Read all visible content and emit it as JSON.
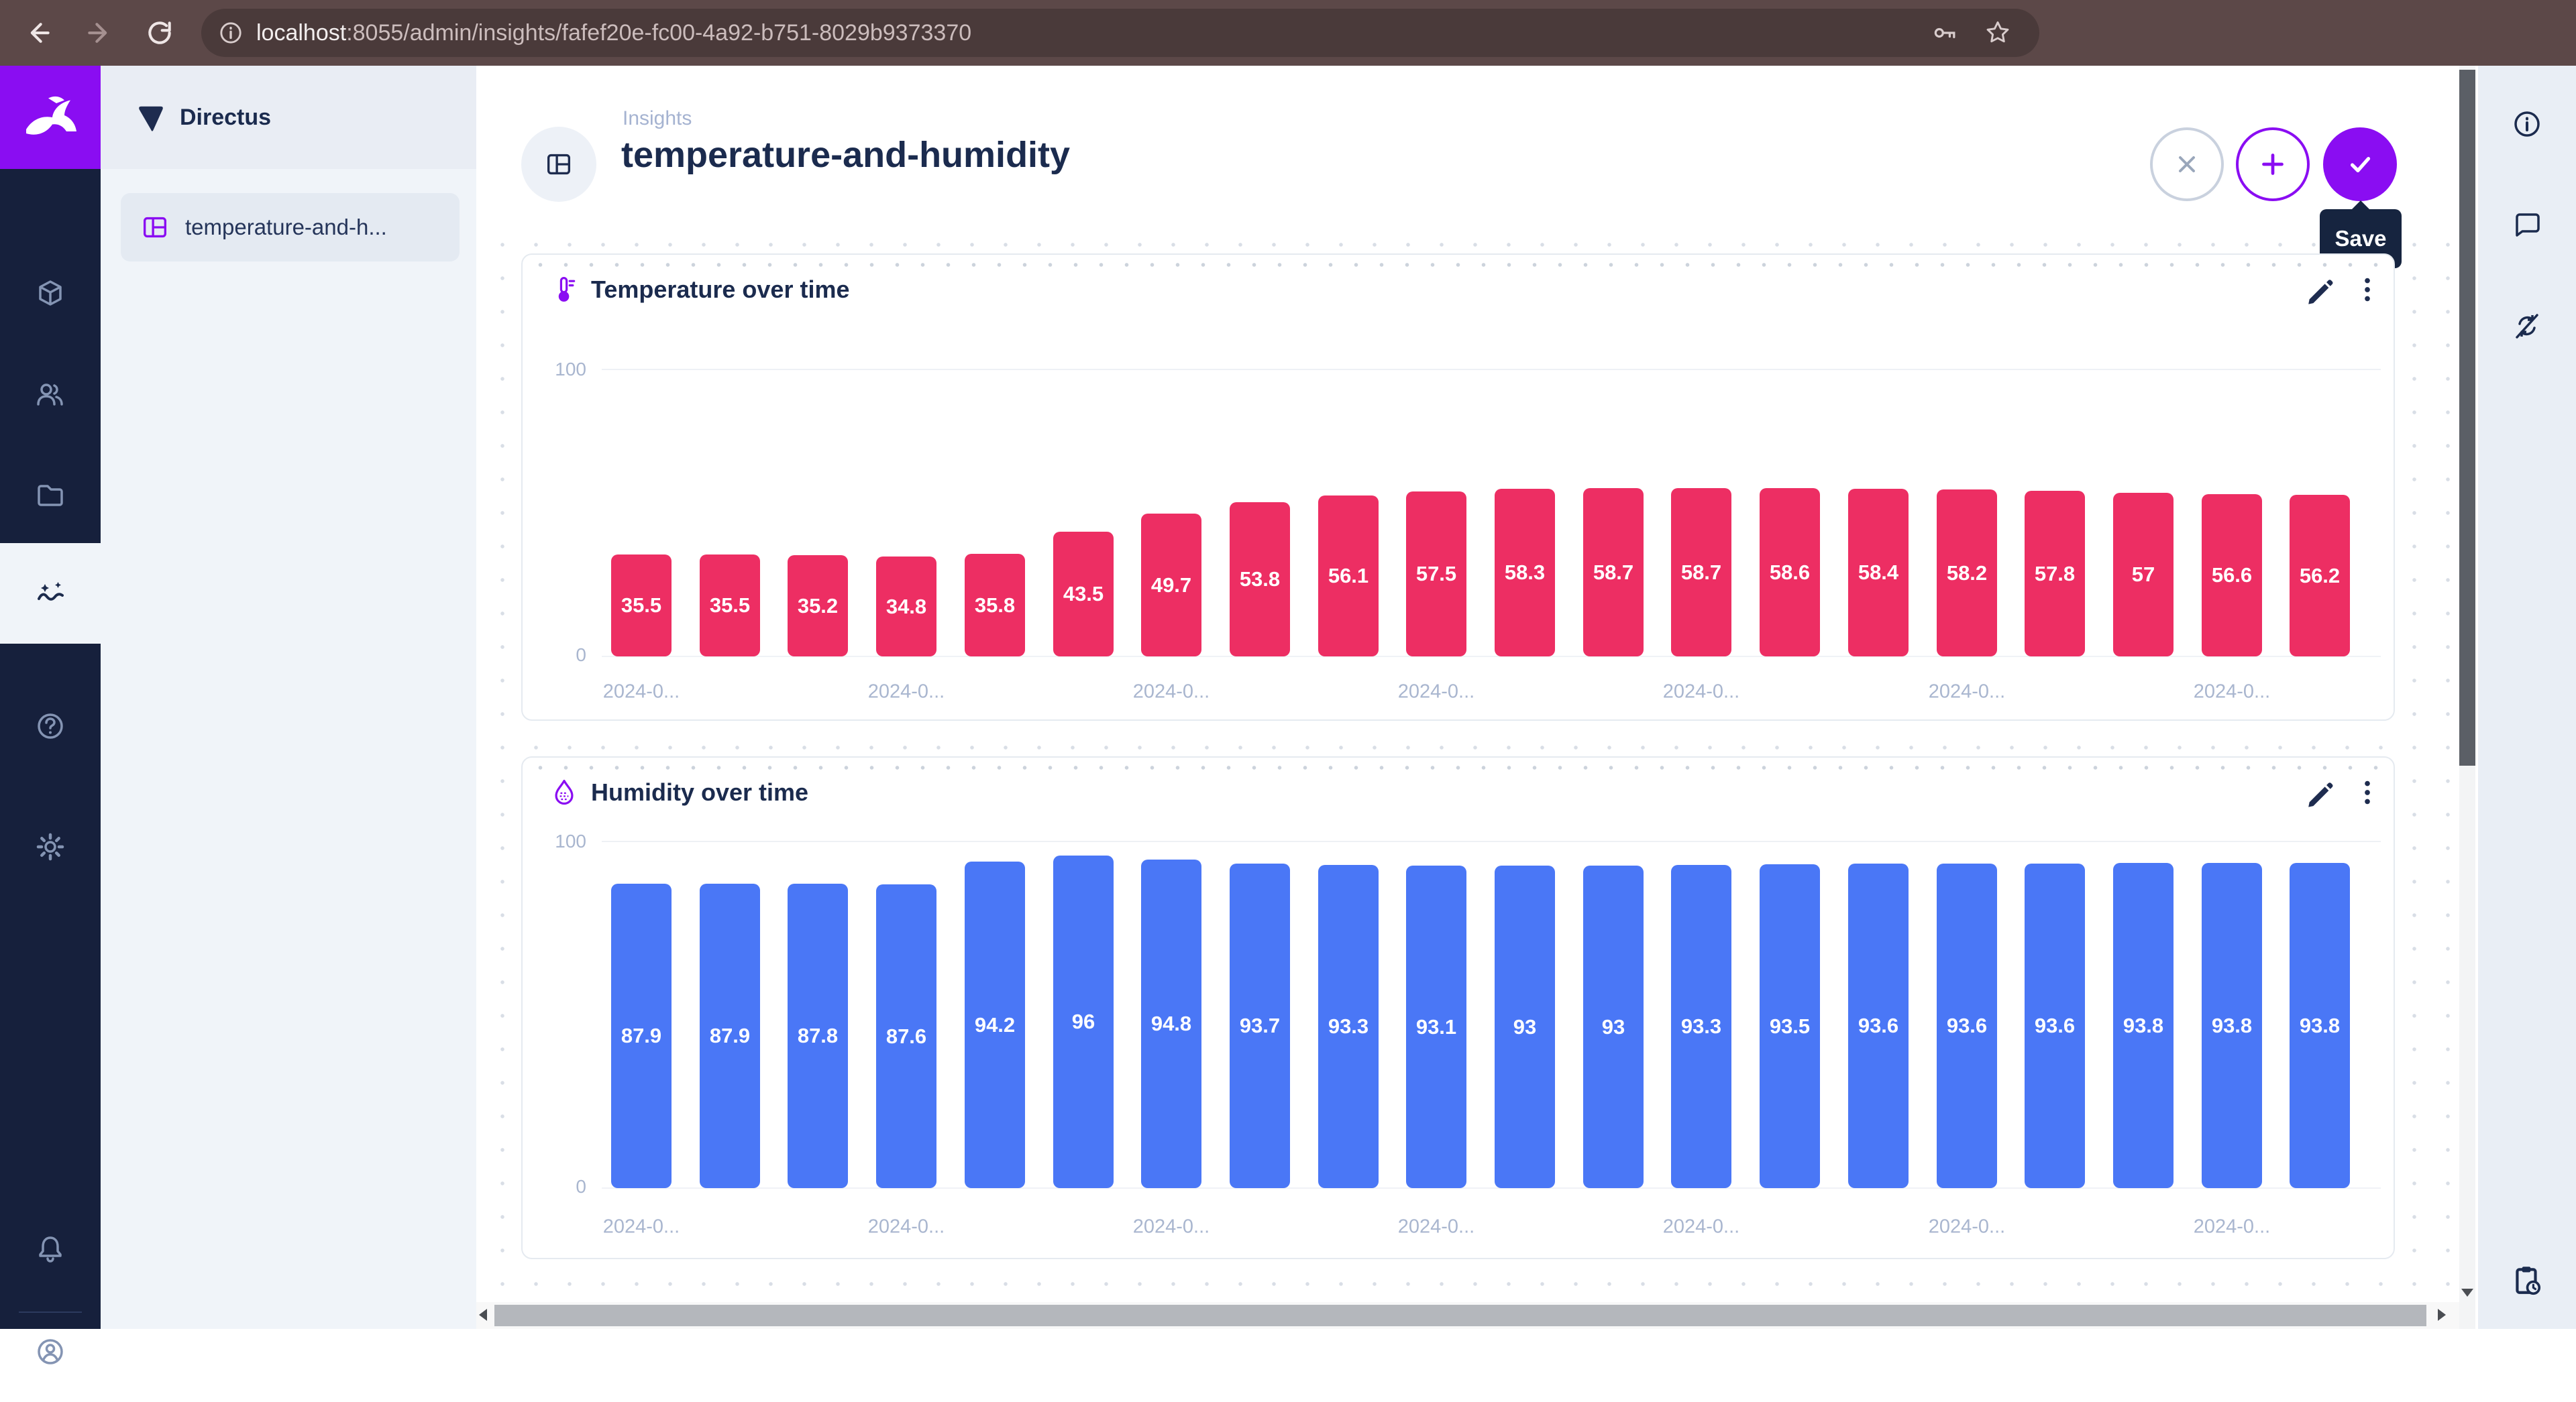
{
  "browser": {
    "url_host": "localhost",
    "url_rest": ":8055/admin/insights/fafef20e-fc00-4a92-b751-8029b9373370"
  },
  "module_bar": {
    "icons": [
      "directus-logo",
      "box",
      "users",
      "folder",
      "insights",
      "help",
      "settings",
      "notifications",
      "user-avatar"
    ]
  },
  "sidebar": {
    "project_name": "Directus",
    "item_label": "temperature-and-h..."
  },
  "header": {
    "breadcrumb": "Insights",
    "title": "temperature-and-humidity",
    "save_tooltip": "Save"
  },
  "right_sidebar": {
    "icons": [
      "info",
      "comments",
      "auto-refresh-off",
      "clipboard-clock"
    ]
  },
  "colors": {
    "accent_purple": "#8a0df2",
    "temperature_bar": "#ed2e63",
    "humidity_bar": "#4a77f6",
    "navy": "#1b2b4e"
  },
  "chart_data": [
    {
      "type": "bar",
      "title": "Temperature over time",
      "values": [
        35.5,
        35.5,
        35.2,
        34.8,
        35.8,
        43.5,
        49.7,
        53.8,
        56.1,
        57.5,
        58.3,
        58.7,
        58.7,
        58.6,
        58.4,
        58.2,
        57.8,
        57,
        56.6,
        56.2
      ],
      "ylim": [
        0,
        100
      ],
      "x_tick_text": "2024-0...",
      "x_label_indices": [
        0,
        3,
        6,
        9,
        12,
        15,
        18
      ],
      "color": "#ed2e63",
      "grid": "top-gridline-and-baseline",
      "legend": "none",
      "value_labels": "inside-bars-white"
    },
    {
      "type": "bar",
      "title": "Humidity over time",
      "values": [
        87.9,
        87.9,
        87.8,
        87.6,
        94.2,
        96,
        94.8,
        93.7,
        93.3,
        93.1,
        93,
        93,
        93.3,
        93.5,
        93.6,
        93.6,
        93.6,
        93.8,
        93.8,
        93.8
      ],
      "ylim": [
        0,
        100
      ],
      "x_tick_text": "2024-0...",
      "x_label_indices": [
        0,
        3,
        6,
        9,
        12,
        15,
        18
      ],
      "color": "#4a77f6",
      "grid": "top-gridline-and-baseline",
      "legend": "none",
      "value_labels": "inside-bars-white"
    }
  ]
}
